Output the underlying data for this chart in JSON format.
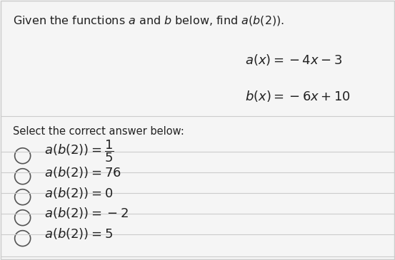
{
  "background_color": "#f5f5f5",
  "title_text": "Given the functions $a$ and $b$ below, find $a(b(2))$.",
  "func_a": "$a(x) = -4x - 3$",
  "func_b": "$b(x) = -6x + 10$",
  "select_text": "Select the correct answer below:",
  "answers": [
    "$a(b(2)) = \\dfrac{1}{5}$",
    "$a(b(2)) = 76$",
    "$a(b(2)) = 0$",
    "$a(b(2)) = -2$",
    "$a(b(2)) = 5$"
  ],
  "divider_color": "#cccccc",
  "text_color": "#222222",
  "circle_color": "#555555",
  "title_fontsize": 11.5,
  "answer_fontsize": 13,
  "func_fontsize": 13,
  "select_fontsize": 10.5
}
